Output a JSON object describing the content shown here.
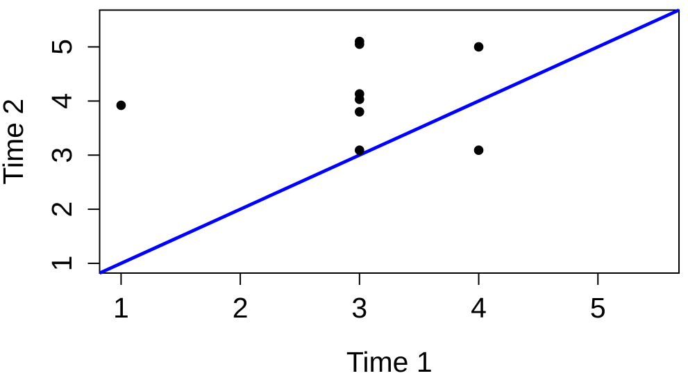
{
  "chart_data": {
    "type": "scatter",
    "title": "",
    "xlabel": "Time 1",
    "ylabel": "Time 2",
    "x_ticks": [
      "1",
      "2",
      "3",
      "4",
      "5"
    ],
    "y_ticks": [
      "1",
      "2",
      "3",
      "4",
      "5"
    ],
    "xlim": [
      0.82,
      5.68
    ],
    "ylim": [
      0.82,
      5.68
    ],
    "points": [
      {
        "x": 1,
        "y": 3.92
      },
      {
        "x": 3,
        "y": 5.1
      },
      {
        "x": 3,
        "y": 5.05
      },
      {
        "x": 3,
        "y": 4.13
      },
      {
        "x": 3,
        "y": 4.03
      },
      {
        "x": 3,
        "y": 3.8
      },
      {
        "x": 3,
        "y": 3.09
      },
      {
        "x": 4,
        "y": 5.0
      },
      {
        "x": 4,
        "y": 3.09
      }
    ],
    "reference_line": {
      "slope": 1,
      "intercept": 0,
      "color": "#0000FF"
    },
    "point_color": "#000000",
    "axis_color": "#000000",
    "background": "#FFFFFF",
    "grid": false,
    "legend": null
  }
}
